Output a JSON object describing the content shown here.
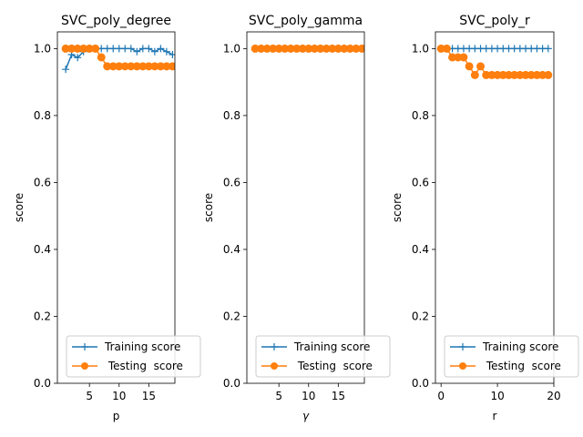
{
  "chart_data": [
    {
      "type": "line",
      "title": "SVC_poly_degree",
      "xlabel": "p",
      "ylabel": "score",
      "xlim": [
        -0.4,
        19.4
      ],
      "ylim": [
        0.0,
        1.05
      ],
      "xticks": [
        5,
        10,
        15
      ],
      "yticks": [
        0.0,
        0.2,
        0.4,
        0.6,
        0.8,
        1.0
      ],
      "ytick_labels": [
        "0.0",
        "0.2",
        "0.4",
        "0.6",
        "0.8",
        "1.0"
      ],
      "legend_position": "lower-right",
      "series": [
        {
          "name": "Training score",
          "marker": "+",
          "color": "#1f77b4",
          "x": [
            1,
            2,
            3,
            4,
            5,
            6,
            7,
            8,
            9,
            10,
            11,
            12,
            13,
            14,
            15,
            16,
            17,
            18,
            19
          ],
          "y": [
            0.938,
            0.982,
            0.973,
            0.991,
            1.0,
            1.0,
            1.0,
            1.0,
            1.0,
            1.0,
            1.0,
            1.0,
            0.991,
            1.0,
            1.0,
            0.991,
            1.0,
            0.991,
            0.982
          ]
        },
        {
          "name": " Testing  score",
          "marker": "o",
          "color": "#ff7f0e",
          "x": [
            1,
            2,
            3,
            4,
            5,
            6,
            7,
            8,
            9,
            10,
            11,
            12,
            13,
            14,
            15,
            16,
            17,
            18,
            19
          ],
          "y": [
            1.0,
            1.0,
            1.0,
            1.0,
            1.0,
            1.0,
            0.974,
            0.947,
            0.947,
            0.947,
            0.947,
            0.947,
            0.947,
            0.947,
            0.947,
            0.947,
            0.947,
            0.947,
            0.947
          ]
        }
      ]
    },
    {
      "type": "line",
      "title": "SVC_poly_gamma",
      "xlabel": "γ",
      "ylabel": "score",
      "xlim": [
        -0.4,
        19.4
      ],
      "ylim": [
        0.0,
        1.05
      ],
      "xticks": [
        5,
        10,
        15
      ],
      "yticks": [
        0.0,
        0.2,
        0.4,
        0.6,
        0.8,
        1.0
      ],
      "ytick_labels": [
        "0.0",
        "0.2",
        "0.4",
        "0.6",
        "0.8",
        "1.0"
      ],
      "legend_position": "lower-right",
      "series": [
        {
          "name": "Training score",
          "marker": "+",
          "color": "#1f77b4",
          "x": [
            1,
            2,
            3,
            4,
            5,
            6,
            7,
            8,
            9,
            10,
            11,
            12,
            13,
            14,
            15,
            16,
            17,
            18,
            19
          ],
          "y": [
            1.0,
            1.0,
            1.0,
            1.0,
            1.0,
            1.0,
            1.0,
            1.0,
            1.0,
            1.0,
            1.0,
            1.0,
            1.0,
            1.0,
            1.0,
            1.0,
            1.0,
            1.0,
            1.0
          ]
        },
        {
          "name": " Testing  score",
          "marker": "o",
          "color": "#ff7f0e",
          "x": [
            1,
            2,
            3,
            4,
            5,
            6,
            7,
            8,
            9,
            10,
            11,
            12,
            13,
            14,
            15,
            16,
            17,
            18,
            19
          ],
          "y": [
            1.0,
            1.0,
            1.0,
            1.0,
            1.0,
            1.0,
            1.0,
            1.0,
            1.0,
            1.0,
            1.0,
            1.0,
            1.0,
            1.0,
            1.0,
            1.0,
            1.0,
            1.0,
            1.0
          ]
        }
      ]
    },
    {
      "type": "line",
      "title": "SVC_poly_r",
      "xlabel": "r",
      "ylabel": "score",
      "xlim": [
        -1.0,
        20.0
      ],
      "ylim": [
        0.0,
        1.05
      ],
      "xticks": [
        0,
        10,
        20
      ],
      "yticks": [
        0.0,
        0.2,
        0.4,
        0.6,
        0.8,
        1.0
      ],
      "ytick_labels": [
        "0.0",
        "0.2",
        "0.4",
        "0.6",
        "0.8",
        "1.0"
      ],
      "legend_position": "lower-right",
      "series": [
        {
          "name": "Training score",
          "marker": "+",
          "color": "#1f77b4",
          "x": [
            0,
            1,
            2,
            3,
            4,
            5,
            6,
            7,
            8,
            9,
            10,
            11,
            12,
            13,
            14,
            15,
            16,
            17,
            18,
            19
          ],
          "y": [
            1.0,
            1.0,
            1.0,
            1.0,
            1.0,
            1.0,
            1.0,
            1.0,
            1.0,
            1.0,
            1.0,
            1.0,
            1.0,
            1.0,
            1.0,
            1.0,
            1.0,
            1.0,
            1.0,
            1.0
          ]
        },
        {
          "name": " Testing  score",
          "marker": "o",
          "color": "#ff7f0e",
          "x": [
            0,
            1,
            2,
            3,
            4,
            5,
            6,
            7,
            8,
            9,
            10,
            11,
            12,
            13,
            14,
            15,
            16,
            17,
            18,
            19
          ],
          "y": [
            1.0,
            1.0,
            0.974,
            0.974,
            0.974,
            0.947,
            0.921,
            0.947,
            0.921,
            0.921,
            0.921,
            0.921,
            0.921,
            0.921,
            0.921,
            0.921,
            0.921,
            0.921,
            0.921,
            0.921
          ]
        }
      ]
    }
  ]
}
